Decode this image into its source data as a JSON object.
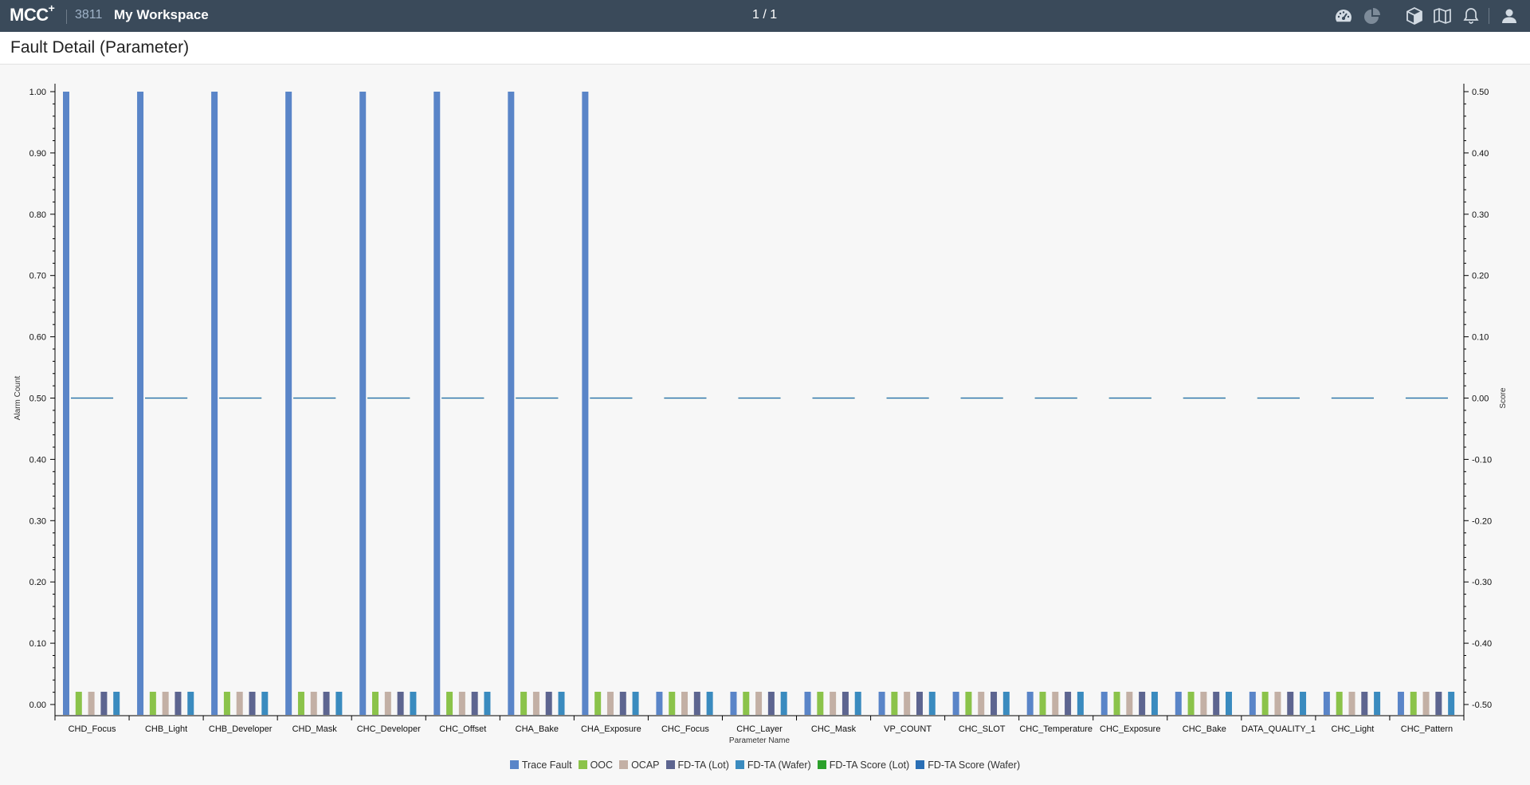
{
  "topbar": {
    "brand": "MCC",
    "brand_sup": "+",
    "workspace_id": "3811",
    "workspace_name": "My Workspace",
    "pager": "1 / 1",
    "icons": [
      "dashboard-icon",
      "pie-chart-icon",
      "cube-icon",
      "map-icon",
      "bell-icon",
      "user-icon"
    ]
  },
  "page": {
    "title": "Fault Detail (Parameter)"
  },
  "chart_data": {
    "type": "bar",
    "xlabel": "Parameter Name",
    "ylabel": "Alarm Count",
    "y2label": "Score",
    "ylim": [
      0,
      1
    ],
    "y2lim": [
      -0.5,
      0.5
    ],
    "yticks": [
      "0.00",
      "0.10",
      "0.20",
      "0.30",
      "0.40",
      "0.50",
      "0.60",
      "0.70",
      "0.80",
      "0.90",
      "1.00"
    ],
    "y2ticks": [
      "-0.50",
      "-0.40",
      "-0.30",
      "-0.20",
      "-0.10",
      "0.00",
      "0.10",
      "0.20",
      "0.30",
      "0.40",
      "0.50"
    ],
    "grid": false,
    "legend_position": "bottom-center",
    "categories": [
      "CHD_Focus",
      "CHB_Light",
      "CHB_Developer",
      "CHD_Mask",
      "CHC_Developer",
      "CHC_Offset",
      "CHA_Bake",
      "CHA_Exposure",
      "CHC_Focus",
      "CHC_Layer",
      "CHC_Mask",
      "VP_COUNT",
      "CHC_SLOT",
      "CHC_Temperature",
      "CHC_Exposure",
      "CHC_Bake",
      "DATA_QUALITY_1",
      "CHC_Light",
      "CHC_Pattern"
    ],
    "series": [
      {
        "name": "Trace Fault",
        "type": "bar",
        "axis": "left",
        "color": "#5a85c8",
        "values": [
          1,
          1,
          1,
          1,
          1,
          1,
          1,
          1,
          0,
          0,
          0,
          0,
          0,
          0,
          0,
          0,
          0,
          0,
          0
        ]
      },
      {
        "name": "OOC",
        "type": "bar",
        "axis": "left",
        "color": "#8bc34a",
        "values": [
          0,
          0,
          0,
          0,
          0,
          0,
          0,
          0,
          0,
          0,
          0,
          0,
          0,
          0,
          0,
          0,
          0,
          0,
          0
        ]
      },
      {
        "name": "OCAP",
        "type": "bar",
        "axis": "left",
        "color": "#c3b0a5",
        "values": [
          0,
          0,
          0,
          0,
          0,
          0,
          0,
          0,
          0,
          0,
          0,
          0,
          0,
          0,
          0,
          0,
          0,
          0,
          0
        ]
      },
      {
        "name": "FD-TA (Lot)",
        "type": "bar",
        "axis": "left",
        "color": "#5d6590",
        "values": [
          0,
          0,
          0,
          0,
          0,
          0,
          0,
          0,
          0,
          0,
          0,
          0,
          0,
          0,
          0,
          0,
          0,
          0,
          0
        ]
      },
      {
        "name": "FD-TA (Wafer)",
        "type": "bar",
        "axis": "left",
        "color": "#3a8bbf",
        "values": [
          0,
          0,
          0,
          0,
          0,
          0,
          0,
          0,
          0,
          0,
          0,
          0,
          0,
          0,
          0,
          0,
          0,
          0,
          0
        ]
      },
      {
        "name": "FD-TA Score (Lot)",
        "type": "line",
        "axis": "right",
        "color": "#2ca02c",
        "values": [
          0,
          0,
          0,
          0,
          0,
          0,
          0,
          0,
          0,
          0,
          0,
          0,
          0,
          0,
          0,
          0,
          0,
          0,
          0
        ]
      },
      {
        "name": "FD-TA Score (Wafer)",
        "type": "line",
        "axis": "right",
        "color": "#2a6fb5",
        "values": [
          0,
          0,
          0,
          0,
          0,
          0,
          0,
          0,
          0,
          0,
          0,
          0,
          0,
          0,
          0,
          0,
          0,
          0,
          0
        ]
      }
    ]
  }
}
